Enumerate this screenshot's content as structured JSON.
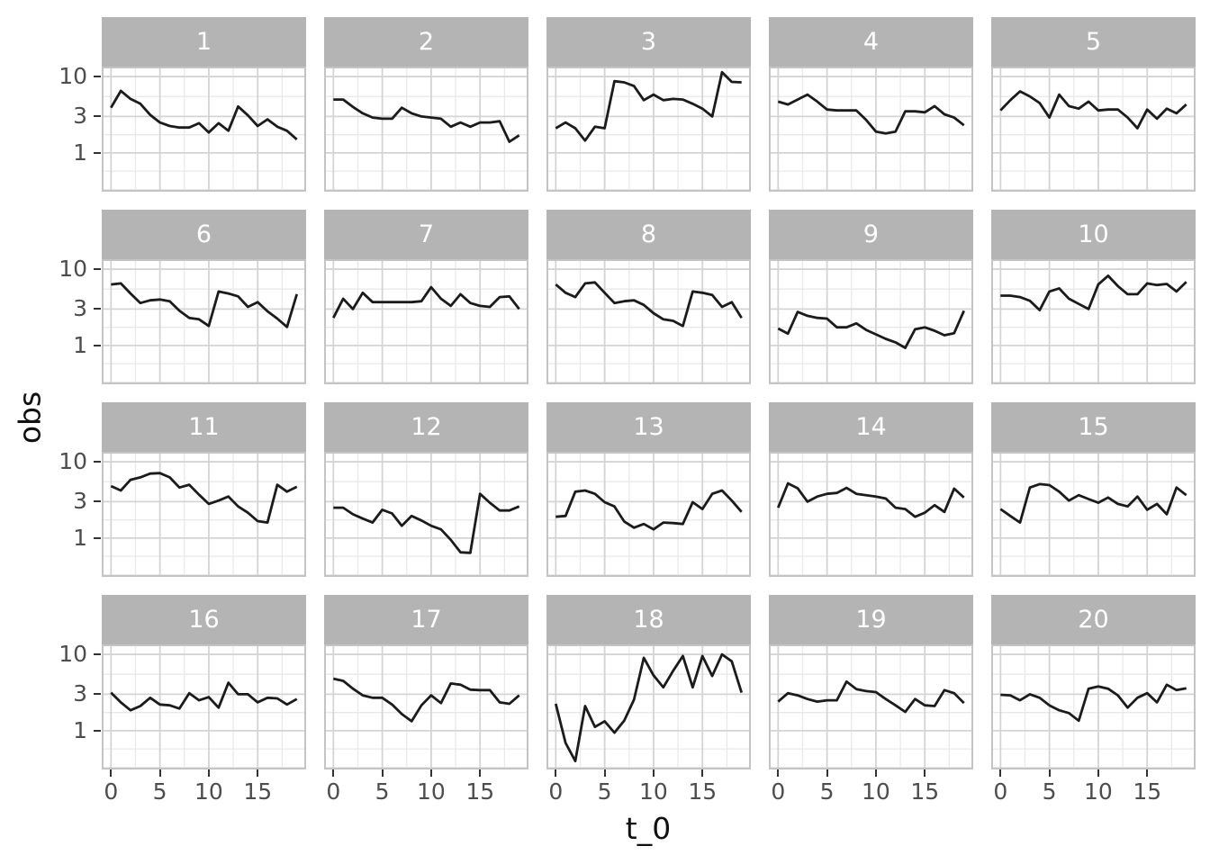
{
  "chart_data": {
    "type": "line",
    "title": "",
    "xlabel": "t_0",
    "ylabel": "obs",
    "x": [
      0,
      1,
      2,
      3,
      4,
      5,
      6,
      7,
      8,
      9,
      10,
      11,
      12,
      13,
      14,
      15,
      16,
      17,
      18,
      19
    ],
    "x_breaks": [
      0,
      5,
      10,
      15
    ],
    "x_minor_breaks": [
      2.5,
      7.5,
      12.5,
      17.5
    ],
    "y_breaks": [
      10,
      3,
      1
    ],
    "y_minor_breaks": [
      0.33,
      0.577,
      1.73,
      5.48
    ],
    "y_scale": "log10",
    "xlim": [
      -0.95,
      19.95
    ],
    "ylim": [
      0.31,
      13.5
    ],
    "grid": "on",
    "legend": "none",
    "facet_rows": 4,
    "facet_cols": 5,
    "facets": [
      {
        "label": "1",
        "values": [
          3.9,
          6.5,
          5.1,
          4.4,
          3.15,
          2.5,
          2.25,
          2.15,
          2.15,
          2.45,
          1.85,
          2.45,
          1.95,
          4.05,
          3.1,
          2.25,
          2.75,
          2.2,
          1.95,
          1.5
        ]
      },
      {
        "label": "2",
        "values": [
          5.0,
          5.0,
          4.0,
          3.3,
          2.9,
          2.8,
          2.8,
          3.9,
          3.3,
          3.0,
          2.9,
          2.8,
          2.2,
          2.5,
          2.2,
          2.5,
          2.5,
          2.6,
          1.4,
          1.7
        ]
      },
      {
        "label": "3",
        "values": [
          2.1,
          2.5,
          2.1,
          1.45,
          2.2,
          2.1,
          8.7,
          8.4,
          7.5,
          4.9,
          5.8,
          4.9,
          5.1,
          5.0,
          4.4,
          3.8,
          3.0,
          11.4,
          8.5,
          8.4
        ]
      },
      {
        "label": "4",
        "values": [
          4.7,
          4.3,
          5.0,
          5.8,
          4.7,
          3.7,
          3.6,
          3.6,
          3.6,
          2.7,
          1.9,
          1.8,
          1.9,
          3.5,
          3.5,
          3.4,
          4.1,
          3.2,
          2.9,
          2.3
        ]
      },
      {
        "label": "5",
        "values": [
          3.6,
          4.9,
          6.4,
          5.5,
          4.5,
          2.9,
          5.8,
          4.1,
          3.8,
          4.7,
          3.6,
          3.7,
          3.7,
          2.9,
          2.1,
          3.7,
          2.8,
          3.8,
          3.3,
          4.3
        ]
      },
      {
        "label": "6",
        "values": [
          6.3,
          6.5,
          4.8,
          3.6,
          3.9,
          4.0,
          3.8,
          2.85,
          2.3,
          2.2,
          1.8,
          5.1,
          4.8,
          4.4,
          3.2,
          3.7,
          2.8,
          2.25,
          1.75,
          4.7
        ]
      },
      {
        "label": "7",
        "values": [
          2.3,
          4.1,
          3.0,
          4.9,
          3.7,
          3.7,
          3.7,
          3.7,
          3.7,
          3.8,
          5.8,
          4.1,
          3.3,
          4.7,
          3.6,
          3.3,
          3.2,
          4.3,
          4.4,
          3.0
        ]
      },
      {
        "label": "8",
        "values": [
          6.3,
          4.9,
          4.3,
          6.5,
          6.7,
          4.9,
          3.6,
          3.8,
          3.9,
          3.4,
          2.65,
          2.2,
          2.1,
          1.8,
          5.1,
          4.9,
          4.6,
          3.2,
          3.7,
          2.3
        ]
      },
      {
        "label": "9",
        "values": [
          1.67,
          1.43,
          2.75,
          2.45,
          2.3,
          2.25,
          1.73,
          1.73,
          1.95,
          1.6,
          1.4,
          1.22,
          1.1,
          0.93,
          1.63,
          1.73,
          1.56,
          1.36,
          1.45,
          2.85
        ]
      },
      {
        "label": "10",
        "values": [
          4.5,
          4.5,
          4.3,
          3.85,
          2.9,
          5.1,
          5.6,
          4.1,
          3.5,
          3.0,
          6.3,
          8.2,
          6.0,
          4.7,
          4.7,
          6.5,
          6.2,
          6.4,
          5.1,
          6.8
        ]
      },
      {
        "label": "11",
        "values": [
          4.8,
          4.2,
          5.8,
          6.25,
          7.0,
          7.1,
          6.25,
          4.6,
          5.0,
          3.7,
          2.8,
          3.1,
          3.5,
          2.6,
          2.15,
          1.67,
          1.6,
          5.0,
          4.05,
          4.7
        ]
      },
      {
        "label": "12",
        "values": [
          2.5,
          2.5,
          2.05,
          1.8,
          1.6,
          2.35,
          2.1,
          1.45,
          1.95,
          1.7,
          1.45,
          1.3,
          0.95,
          0.65,
          0.64,
          3.8,
          2.9,
          2.3,
          2.3,
          2.6
        ]
      },
      {
        "label": "13",
        "values": [
          1.9,
          1.95,
          4.05,
          4.2,
          3.8,
          2.95,
          2.6,
          1.65,
          1.37,
          1.53,
          1.3,
          1.6,
          1.57,
          1.53,
          2.95,
          2.4,
          3.8,
          4.2,
          3.1,
          2.2
        ]
      },
      {
        "label": "14",
        "values": [
          2.5,
          5.2,
          4.5,
          3.0,
          3.5,
          3.8,
          3.9,
          4.55,
          3.8,
          3.65,
          3.5,
          3.3,
          2.5,
          2.4,
          1.9,
          2.15,
          2.7,
          2.2,
          4.45,
          3.4
        ]
      },
      {
        "label": "15",
        "values": [
          2.4,
          1.95,
          1.6,
          4.6,
          5.1,
          4.95,
          4.05,
          3.1,
          3.65,
          3.25,
          2.9,
          3.4,
          2.8,
          2.6,
          3.5,
          2.35,
          2.8,
          2.05,
          4.6,
          3.65
        ]
      },
      {
        "label": "16",
        "values": [
          3.15,
          2.35,
          1.85,
          2.1,
          2.7,
          2.2,
          2.15,
          1.95,
          3.1,
          2.5,
          2.75,
          2.0,
          4.25,
          3.0,
          3.0,
          2.35,
          2.7,
          2.65,
          2.2,
          2.6
        ]
      },
      {
        "label": "17",
        "values": [
          4.8,
          4.5,
          3.55,
          2.9,
          2.7,
          2.7,
          2.2,
          1.65,
          1.33,
          2.15,
          2.9,
          2.3,
          4.15,
          4.0,
          3.45,
          3.4,
          3.4,
          2.35,
          2.25,
          2.9
        ]
      },
      {
        "label": "18",
        "values": [
          2.25,
          0.69,
          0.4,
          2.1,
          1.12,
          1.33,
          0.94,
          1.35,
          2.55,
          9.0,
          5.3,
          3.7,
          6.1,
          9.5,
          3.7,
          9.5,
          5.2,
          10.0,
          8.1,
          3.15
        ]
      },
      {
        "label": "19",
        "values": [
          2.4,
          3.1,
          2.9,
          2.6,
          2.4,
          2.5,
          2.5,
          4.4,
          3.5,
          3.3,
          3.2,
          2.6,
          2.15,
          1.76,
          2.6,
          2.15,
          2.1,
          3.4,
          3.1,
          2.3
        ]
      },
      {
        "label": "20",
        "values": [
          2.95,
          2.9,
          2.5,
          3.0,
          2.7,
          2.15,
          1.85,
          1.7,
          1.35,
          3.55,
          3.8,
          3.55,
          2.9,
          2.0,
          2.7,
          3.1,
          2.35,
          4.0,
          3.4,
          3.6
        ]
      }
    ]
  },
  "style": {
    "strip_bg": "#b4b4b4",
    "strip_text": "#ffffff",
    "panel_bg": "#ffffff",
    "grid_major": "#d4d4d4",
    "grid_minor": "#e9e9e9",
    "panel_border": "#c4c4c4",
    "tick_mark": "#333333",
    "tick_label": "#4d4d4d",
    "axis_title": "#111111",
    "line": "#1b1b1b"
  }
}
